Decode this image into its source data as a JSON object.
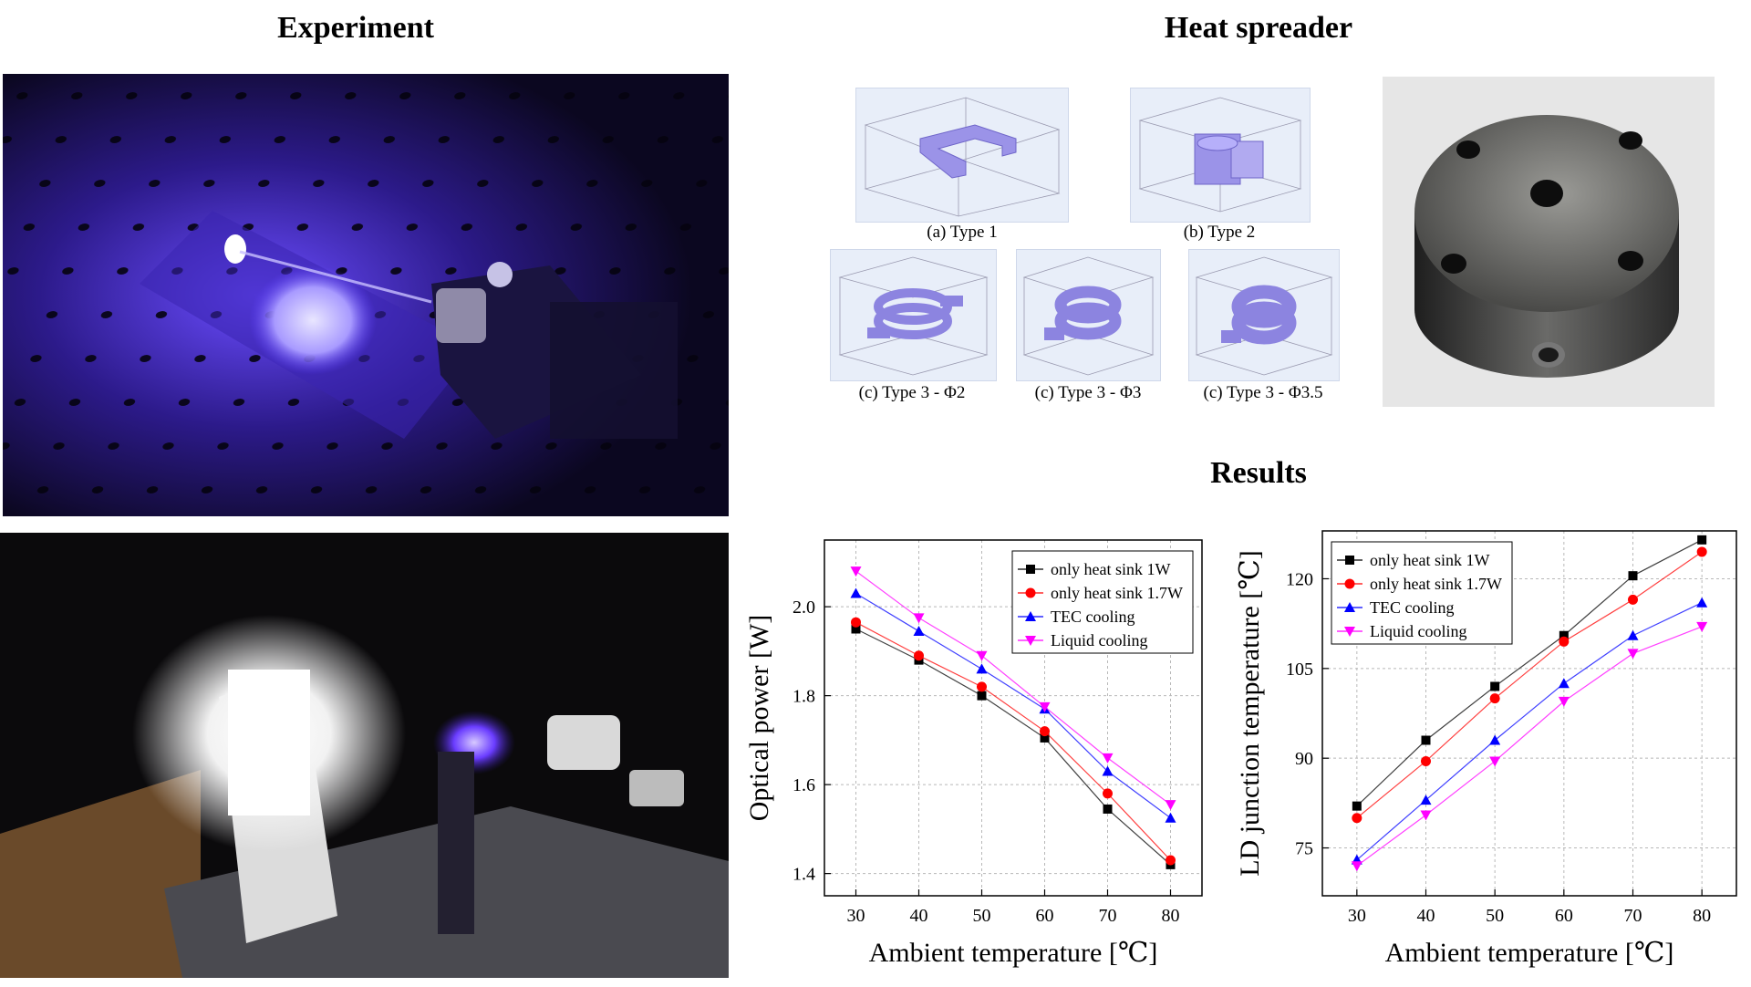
{
  "sections": {
    "experiment": "Experiment",
    "heat_spreader": "Heat spreader",
    "results": "Results"
  },
  "heat_spreader_captions": [
    "(a) Type 1",
    "(b) Type 2",
    "(c) Type 3 - Φ2",
    "(c) Type 3 - Φ3",
    "(c) Type 3 - Φ3.5"
  ],
  "colors": {
    "series": [
      "#000000",
      "#ff0000",
      "#0000ff",
      "#ff00ff"
    ],
    "laser": "#5a3cff",
    "panel_bg": "#e8eef9"
  },
  "chart_data": [
    {
      "type": "line",
      "xlabel": "Ambient temperature [℃]",
      "ylabel": "Optical power [W]",
      "x": [
        30,
        40,
        50,
        60,
        70,
        80
      ],
      "xlim": [
        25,
        85
      ],
      "ylim": [
        1.35,
        2.15
      ],
      "xticks": [
        "30",
        "40",
        "50",
        "60",
        "70",
        "80"
      ],
      "yticks": [
        1.4,
        1.6,
        1.8,
        2.0
      ],
      "ytick_labels": [
        "1.4",
        "1.6",
        "1.8",
        "2.0"
      ],
      "grid": true,
      "legend_position": "top-right",
      "series": [
        {
          "name": "only heat sink 1W",
          "marker": "square",
          "values": [
            1.95,
            1.88,
            1.8,
            1.705,
            1.545,
            1.42
          ]
        },
        {
          "name": "only heat sink 1.7W",
          "marker": "circle",
          "values": [
            1.965,
            1.89,
            1.82,
            1.72,
            1.58,
            1.43
          ]
        },
        {
          "name": "TEC cooling",
          "marker": "triangle-up",
          "values": [
            2.03,
            1.945,
            1.86,
            1.77,
            1.63,
            1.525
          ]
        },
        {
          "name": "Liquid cooling",
          "marker": "triangle-down",
          "values": [
            2.08,
            1.975,
            1.89,
            1.775,
            1.66,
            1.555
          ]
        }
      ]
    },
    {
      "type": "line",
      "xlabel": "Ambient temperature [℃]",
      "ylabel": "LD junction temperature [℃]",
      "x": [
        30,
        40,
        50,
        60,
        70,
        80
      ],
      "xlim": [
        25,
        85
      ],
      "ylim": [
        67,
        128
      ],
      "xticks": [
        "30",
        "40",
        "50",
        "60",
        "70",
        "80"
      ],
      "yticks": [
        75,
        90,
        105,
        120
      ],
      "ytick_labels": [
        "75",
        "90",
        "105",
        "120"
      ],
      "grid": true,
      "legend_position": "top-left",
      "series": [
        {
          "name": "only heat sink 1W",
          "marker": "square",
          "values": [
            82,
            93,
            102,
            110.5,
            120.5,
            126.5
          ]
        },
        {
          "name": "only heat sink 1.7W",
          "marker": "circle",
          "values": [
            80,
            89.5,
            100,
            109.5,
            116.5,
            124.5
          ]
        },
        {
          "name": "TEC cooling",
          "marker": "triangle-up",
          "values": [
            73,
            83,
            93,
            102.5,
            110.5,
            116
          ]
        },
        {
          "name": "Liquid cooling",
          "marker": "triangle-down",
          "values": [
            72,
            80.5,
            89.5,
            99.5,
            107.5,
            112
          ]
        }
      ]
    }
  ]
}
